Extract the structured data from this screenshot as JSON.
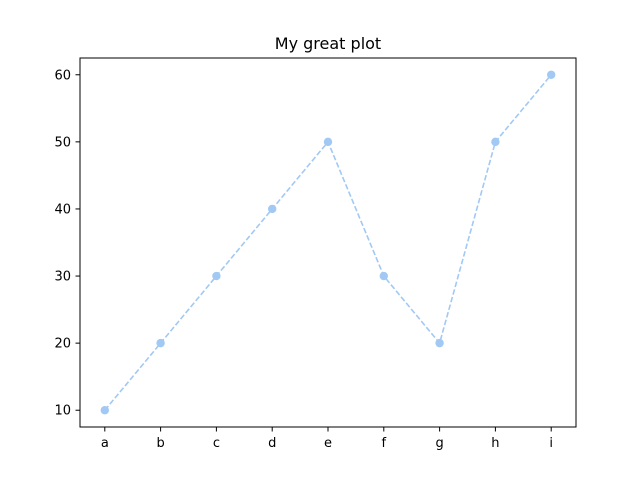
{
  "chart_data": {
    "type": "line",
    "title": "My great plot",
    "xlabel": "",
    "ylabel": "",
    "categories": [
      "a",
      "b",
      "c",
      "d",
      "e",
      "f",
      "g",
      "h",
      "i"
    ],
    "series": [
      {
        "values": [
          10,
          20,
          30,
          40,
          50,
          30,
          20,
          50,
          60
        ],
        "color": "#a1c9f4",
        "line_style": "dashed",
        "marker": "circle"
      }
    ],
    "ylim": [
      7.5,
      62.5
    ],
    "yticks": [
      "10",
      "20",
      "30",
      "40",
      "50",
      "60"
    ],
    "grid": false,
    "legend": "none"
  }
}
